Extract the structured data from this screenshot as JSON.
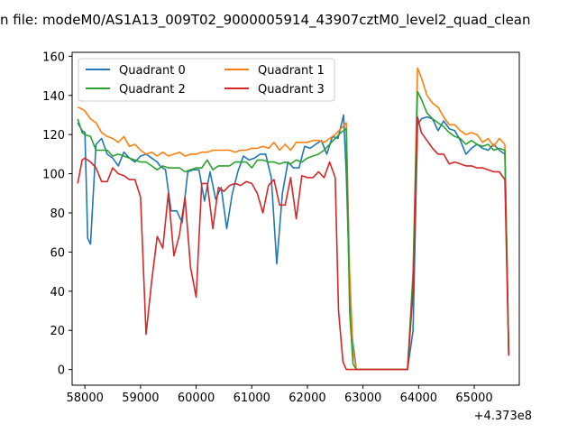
{
  "chart_data": {
    "type": "line",
    "title": "n file: modeM0/AS1A13_009T02_9000005914_43907cztM0_level2_quad_clean",
    "xlabel": "",
    "ylabel": "",
    "x_offset_label": "+4.373e8",
    "xlim": [
      57770,
      65810
    ],
    "ylim": [
      -8,
      162
    ],
    "x_ticks": [
      58000,
      59000,
      60000,
      61000,
      62000,
      63000,
      64000,
      65000
    ],
    "x_tick_labels": [
      "58000",
      "59000",
      "60000",
      "61000",
      "62000",
      "63000",
      "64000",
      "65000"
    ],
    "y_ticks": [
      0,
      20,
      40,
      60,
      80,
      100,
      120,
      140,
      160
    ],
    "y_tick_labels": [
      "0",
      "20",
      "40",
      "60",
      "80",
      "100",
      "120",
      "140",
      "160"
    ],
    "grid": false,
    "legend": {
      "placement": "top-left",
      "columns": 2
    },
    "series": [
      {
        "name": "Quadrant 0",
        "color": "#1f77b4",
        "points": [
          [
            57870,
            126
          ],
          [
            57950,
            122
          ],
          [
            58000,
            121
          ],
          [
            58050,
            67
          ],
          [
            58100,
            64
          ],
          [
            58200,
            115
          ],
          [
            58300,
            118
          ],
          [
            58400,
            110
          ],
          [
            58500,
            108
          ],
          [
            58600,
            104
          ],
          [
            58700,
            111
          ],
          [
            58800,
            108
          ],
          [
            58900,
            106
          ],
          [
            59000,
            109
          ],
          [
            59100,
            110
          ],
          [
            59200,
            108
          ],
          [
            59300,
            106
          ],
          [
            59350,
            104
          ],
          [
            59450,
            102
          ],
          [
            59550,
            81
          ],
          [
            59650,
            81
          ],
          [
            59750,
            75
          ],
          [
            59850,
            101
          ],
          [
            59950,
            102
          ],
          [
            60050,
            102
          ],
          [
            60150,
            86
          ],
          [
            60250,
            101
          ],
          [
            60350,
            87
          ],
          [
            60450,
            93
          ],
          [
            60550,
            72
          ],
          [
            60650,
            90
          ],
          [
            60750,
            101
          ],
          [
            60850,
            109
          ],
          [
            60950,
            107
          ],
          [
            61050,
            108
          ],
          [
            61150,
            110
          ],
          [
            61250,
            110
          ],
          [
            61350,
            98
          ],
          [
            61450,
            54
          ],
          [
            61550,
            90
          ],
          [
            61650,
            106
          ],
          [
            61750,
            103
          ],
          [
            61850,
            103
          ],
          [
            61950,
            114
          ],
          [
            62050,
            113
          ],
          [
            62150,
            115
          ],
          [
            62250,
            117
          ],
          [
            62350,
            110
          ],
          [
            62450,
            119
          ],
          [
            62550,
            118
          ],
          [
            62650,
            130
          ],
          [
            62700,
            100
          ],
          [
            62780,
            22
          ],
          [
            62880,
            0
          ],
          [
            63000,
            0
          ],
          [
            63200,
            0
          ],
          [
            63400,
            0
          ],
          [
            63600,
            0
          ],
          [
            63800,
            0
          ],
          [
            63900,
            20
          ],
          [
            63980,
            125
          ],
          [
            64050,
            128
          ],
          [
            64150,
            129
          ],
          [
            64250,
            128
          ],
          [
            64350,
            122
          ],
          [
            64450,
            127
          ],
          [
            64550,
            123
          ],
          [
            64650,
            122
          ],
          [
            64750,
            117
          ],
          [
            64850,
            110
          ],
          [
            64950,
            113
          ],
          [
            65050,
            115
          ],
          [
            65150,
            113
          ],
          [
            65250,
            112
          ],
          [
            65350,
            115
          ],
          [
            65450,
            112
          ],
          [
            65550,
            110
          ],
          [
            65620,
            8
          ]
        ]
      },
      {
        "name": "Quadrant 1",
        "color": "#ff7f0e",
        "points": [
          [
            57870,
            134
          ],
          [
            57950,
            133
          ],
          [
            58000,
            132
          ],
          [
            58100,
            128
          ],
          [
            58200,
            126
          ],
          [
            58300,
            121
          ],
          [
            58400,
            119
          ],
          [
            58500,
            118
          ],
          [
            58600,
            116
          ],
          [
            58700,
            119
          ],
          [
            58800,
            114
          ],
          [
            58900,
            115
          ],
          [
            59000,
            112
          ],
          [
            59100,
            110
          ],
          [
            59200,
            111
          ],
          [
            59300,
            109
          ],
          [
            59400,
            111
          ],
          [
            59500,
            109
          ],
          [
            59600,
            110
          ],
          [
            59700,
            111
          ],
          [
            59800,
            109
          ],
          [
            59900,
            110
          ],
          [
            60000,
            110
          ],
          [
            60100,
            111
          ],
          [
            60200,
            111
          ],
          [
            60300,
            112
          ],
          [
            60400,
            112
          ],
          [
            60500,
            112
          ],
          [
            60600,
            112
          ],
          [
            60700,
            111
          ],
          [
            60800,
            112
          ],
          [
            60900,
            112
          ],
          [
            61000,
            113
          ],
          [
            61100,
            113
          ],
          [
            61200,
            114
          ],
          [
            61300,
            113
          ],
          [
            61400,
            116
          ],
          [
            61500,
            112
          ],
          [
            61600,
            115
          ],
          [
            61700,
            112
          ],
          [
            61800,
            116
          ],
          [
            61900,
            116
          ],
          [
            62000,
            116
          ],
          [
            62100,
            117
          ],
          [
            62200,
            117
          ],
          [
            62300,
            116
          ],
          [
            62400,
            118
          ],
          [
            62500,
            120
          ],
          [
            62600,
            123
          ],
          [
            62700,
            126
          ],
          [
            62760,
            50
          ],
          [
            62820,
            10
          ],
          [
            62880,
            0
          ],
          [
            63000,
            0
          ],
          [
            63200,
            0
          ],
          [
            63400,
            0
          ],
          [
            63600,
            0
          ],
          [
            63800,
            0
          ],
          [
            63900,
            45
          ],
          [
            63980,
            154
          ],
          [
            64050,
            149
          ],
          [
            64150,
            140
          ],
          [
            64250,
            136
          ],
          [
            64350,
            134
          ],
          [
            64450,
            129
          ],
          [
            64550,
            125
          ],
          [
            64650,
            125
          ],
          [
            64750,
            122
          ],
          [
            64850,
            120
          ],
          [
            64950,
            121
          ],
          [
            65050,
            120
          ],
          [
            65150,
            116
          ],
          [
            65250,
            118
          ],
          [
            65350,
            114
          ],
          [
            65450,
            118
          ],
          [
            65550,
            115
          ],
          [
            65620,
            8
          ]
        ]
      },
      {
        "name": "Quadrant 2",
        "color": "#2ca02c",
        "points": [
          [
            57870,
            128
          ],
          [
            57950,
            121
          ],
          [
            58000,
            120
          ],
          [
            58100,
            119
          ],
          [
            58200,
            112
          ],
          [
            58300,
            112
          ],
          [
            58400,
            112
          ],
          [
            58500,
            109
          ],
          [
            58600,
            110
          ],
          [
            58700,
            109
          ],
          [
            58800,
            108
          ],
          [
            58900,
            107
          ],
          [
            59000,
            106
          ],
          [
            59100,
            106
          ],
          [
            59200,
            104
          ],
          [
            59300,
            102
          ],
          [
            59400,
            104
          ],
          [
            59500,
            103
          ],
          [
            59600,
            103
          ],
          [
            59700,
            103
          ],
          [
            59800,
            101
          ],
          [
            59900,
            102
          ],
          [
            60000,
            103
          ],
          [
            60100,
            103
          ],
          [
            60200,
            107
          ],
          [
            60300,
            102
          ],
          [
            60400,
            104
          ],
          [
            60500,
            104
          ],
          [
            60600,
            104
          ],
          [
            60700,
            106
          ],
          [
            60800,
            106
          ],
          [
            60900,
            106
          ],
          [
            61000,
            103
          ],
          [
            61100,
            107
          ],
          [
            61200,
            107
          ],
          [
            61300,
            106
          ],
          [
            61400,
            106
          ],
          [
            61500,
            105
          ],
          [
            61600,
            106
          ],
          [
            61700,
            105
          ],
          [
            61800,
            107
          ],
          [
            61900,
            106
          ],
          [
            62000,
            108
          ],
          [
            62100,
            109
          ],
          [
            62200,
            110
          ],
          [
            62300,
            112
          ],
          [
            62400,
            115
          ],
          [
            62500,
            118
          ],
          [
            62600,
            121
          ],
          [
            62700,
            123
          ],
          [
            62760,
            30
          ],
          [
            62820,
            3
          ],
          [
            62880,
            0
          ],
          [
            63000,
            0
          ],
          [
            63200,
            0
          ],
          [
            63400,
            0
          ],
          [
            63600,
            0
          ],
          [
            63800,
            0
          ],
          [
            63900,
            50
          ],
          [
            63980,
            142
          ],
          [
            64050,
            138
          ],
          [
            64150,
            131
          ],
          [
            64250,
            128
          ],
          [
            64350,
            126
          ],
          [
            64450,
            124
          ],
          [
            64550,
            121
          ],
          [
            64650,
            119
          ],
          [
            64750,
            118
          ],
          [
            64850,
            115
          ],
          [
            64950,
            117
          ],
          [
            65050,
            115
          ],
          [
            65150,
            114
          ],
          [
            65250,
            115
          ],
          [
            65350,
            112
          ],
          [
            65450,
            113
          ],
          [
            65550,
            112
          ],
          [
            65620,
            8
          ]
        ]
      },
      {
        "name": "Quadrant 3",
        "color": "#d62728",
        "points": [
          [
            57870,
            95
          ],
          [
            57950,
            107
          ],
          [
            58000,
            108
          ],
          [
            58100,
            106
          ],
          [
            58200,
            103
          ],
          [
            58300,
            96
          ],
          [
            58400,
            96
          ],
          [
            58500,
            103
          ],
          [
            58600,
            100
          ],
          [
            58700,
            99
          ],
          [
            58800,
            97
          ],
          [
            58900,
            97
          ],
          [
            59000,
            88
          ],
          [
            59100,
            18
          ],
          [
            59200,
            45
          ],
          [
            59300,
            68
          ],
          [
            59400,
            62
          ],
          [
            59500,
            90
          ],
          [
            59600,
            58
          ],
          [
            59700,
            69
          ],
          [
            59800,
            88
          ],
          [
            59900,
            52
          ],
          [
            60000,
            37
          ],
          [
            60100,
            95
          ],
          [
            60200,
            95
          ],
          [
            60300,
            72
          ],
          [
            60400,
            93
          ],
          [
            60500,
            91
          ],
          [
            60600,
            94
          ],
          [
            60700,
            95
          ],
          [
            60800,
            94
          ],
          [
            60900,
            96
          ],
          [
            61000,
            95
          ],
          [
            61100,
            90
          ],
          [
            61200,
            80
          ],
          [
            61300,
            94
          ],
          [
            61400,
            97
          ],
          [
            61500,
            84
          ],
          [
            61600,
            84
          ],
          [
            61700,
            98
          ],
          [
            61800,
            77
          ],
          [
            61900,
            99
          ],
          [
            62000,
            98
          ],
          [
            62100,
            98
          ],
          [
            62200,
            101
          ],
          [
            62300,
            98
          ],
          [
            62400,
            106
          ],
          [
            62500,
            98
          ],
          [
            62560,
            30
          ],
          [
            62640,
            4
          ],
          [
            62700,
            0
          ],
          [
            62880,
            0
          ],
          [
            63000,
            0
          ],
          [
            63200,
            0
          ],
          [
            63400,
            0
          ],
          [
            63600,
            0
          ],
          [
            63800,
            0
          ],
          [
            63900,
            40
          ],
          [
            63980,
            129
          ],
          [
            64050,
            121
          ],
          [
            64150,
            117
          ],
          [
            64250,
            113
          ],
          [
            64350,
            110
          ],
          [
            64450,
            110
          ],
          [
            64550,
            105
          ],
          [
            64650,
            106
          ],
          [
            64750,
            105
          ],
          [
            64850,
            104
          ],
          [
            64950,
            104
          ],
          [
            65050,
            103
          ],
          [
            65150,
            103
          ],
          [
            65250,
            102
          ],
          [
            65350,
            101
          ],
          [
            65450,
            101
          ],
          [
            65550,
            97
          ],
          [
            65620,
            7
          ]
        ]
      }
    ]
  }
}
